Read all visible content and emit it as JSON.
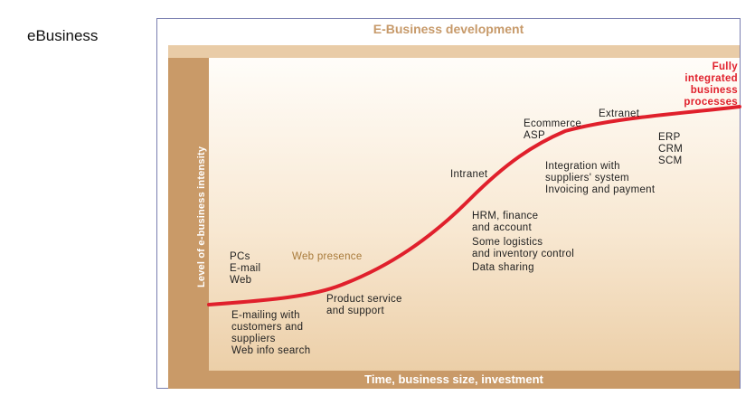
{
  "slide_title": "eBusiness",
  "diagram": {
    "title": "E-Business development",
    "y_axis_label": "Level of e-business intensity",
    "x_axis_label": "Time, business size, investment",
    "curve_color": "#e0202c",
    "labels": {
      "pcs": "PCs\nE-mail\nWeb",
      "web_presence": "Web presence",
      "emailing": "E-mailing with\ncustomers and\nsuppliers\nWeb info search",
      "product_service": "Product service\nand support",
      "intranet": "Intranet",
      "hrm": "HRM, finance\nand account",
      "logistics": "Some logistics\nand inventory control",
      "data_sharing": "Data sharing",
      "ecommerce": "Ecommerce\nASP",
      "integration": "Integration with\nsuppliers' system\nInvoicing and payment",
      "extranet": "Extranet",
      "erp": "ERP\nCRM\nSCM",
      "fully_integrated": "Fully\nintegrated\nbusiness\nprocesses"
    }
  }
}
